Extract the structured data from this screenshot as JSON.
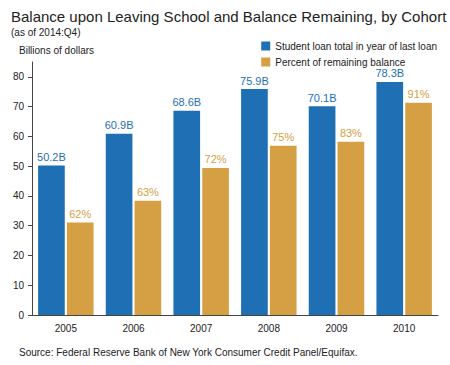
{
  "chart_data": {
    "type": "bar",
    "title": "Balance upon Leaving School and Balance Remaining, by Cohort",
    "subtitle": "(as of 2014:Q4)",
    "y_label": "Billions of dollars",
    "source": "Source: Federal Reserve Bank of New York Consumer Credit Panel/Equifax.",
    "categories": [
      "2005",
      "2006",
      "2007",
      "2008",
      "2009",
      "2010"
    ],
    "series": [
      {
        "name": "Student loan total in year of last loan",
        "color": "#1f6fb4",
        "values": [
          50.2,
          60.9,
          68.6,
          75.9,
          70.1,
          78.3
        ],
        "value_labels": [
          "50.2B",
          "60.9B",
          "68.6B",
          "75.9B",
          "70.1B",
          "78.3B"
        ]
      },
      {
        "name": "Percent of remaining balance",
        "color": "#d5a044",
        "values": [
          31.1,
          38.4,
          49.4,
          56.9,
          58.2,
          71.3
        ],
        "percent_labels": [
          "62%",
          "63%",
          "72%",
          "75%",
          "83%",
          "91%"
        ]
      }
    ],
    "ylim": [
      0,
      85
    ],
    "yticks": [
      0,
      10,
      20,
      30,
      40,
      50,
      60,
      70,
      80
    ],
    "grid": false,
    "legend": "top-right",
    "data_labels": true
  }
}
